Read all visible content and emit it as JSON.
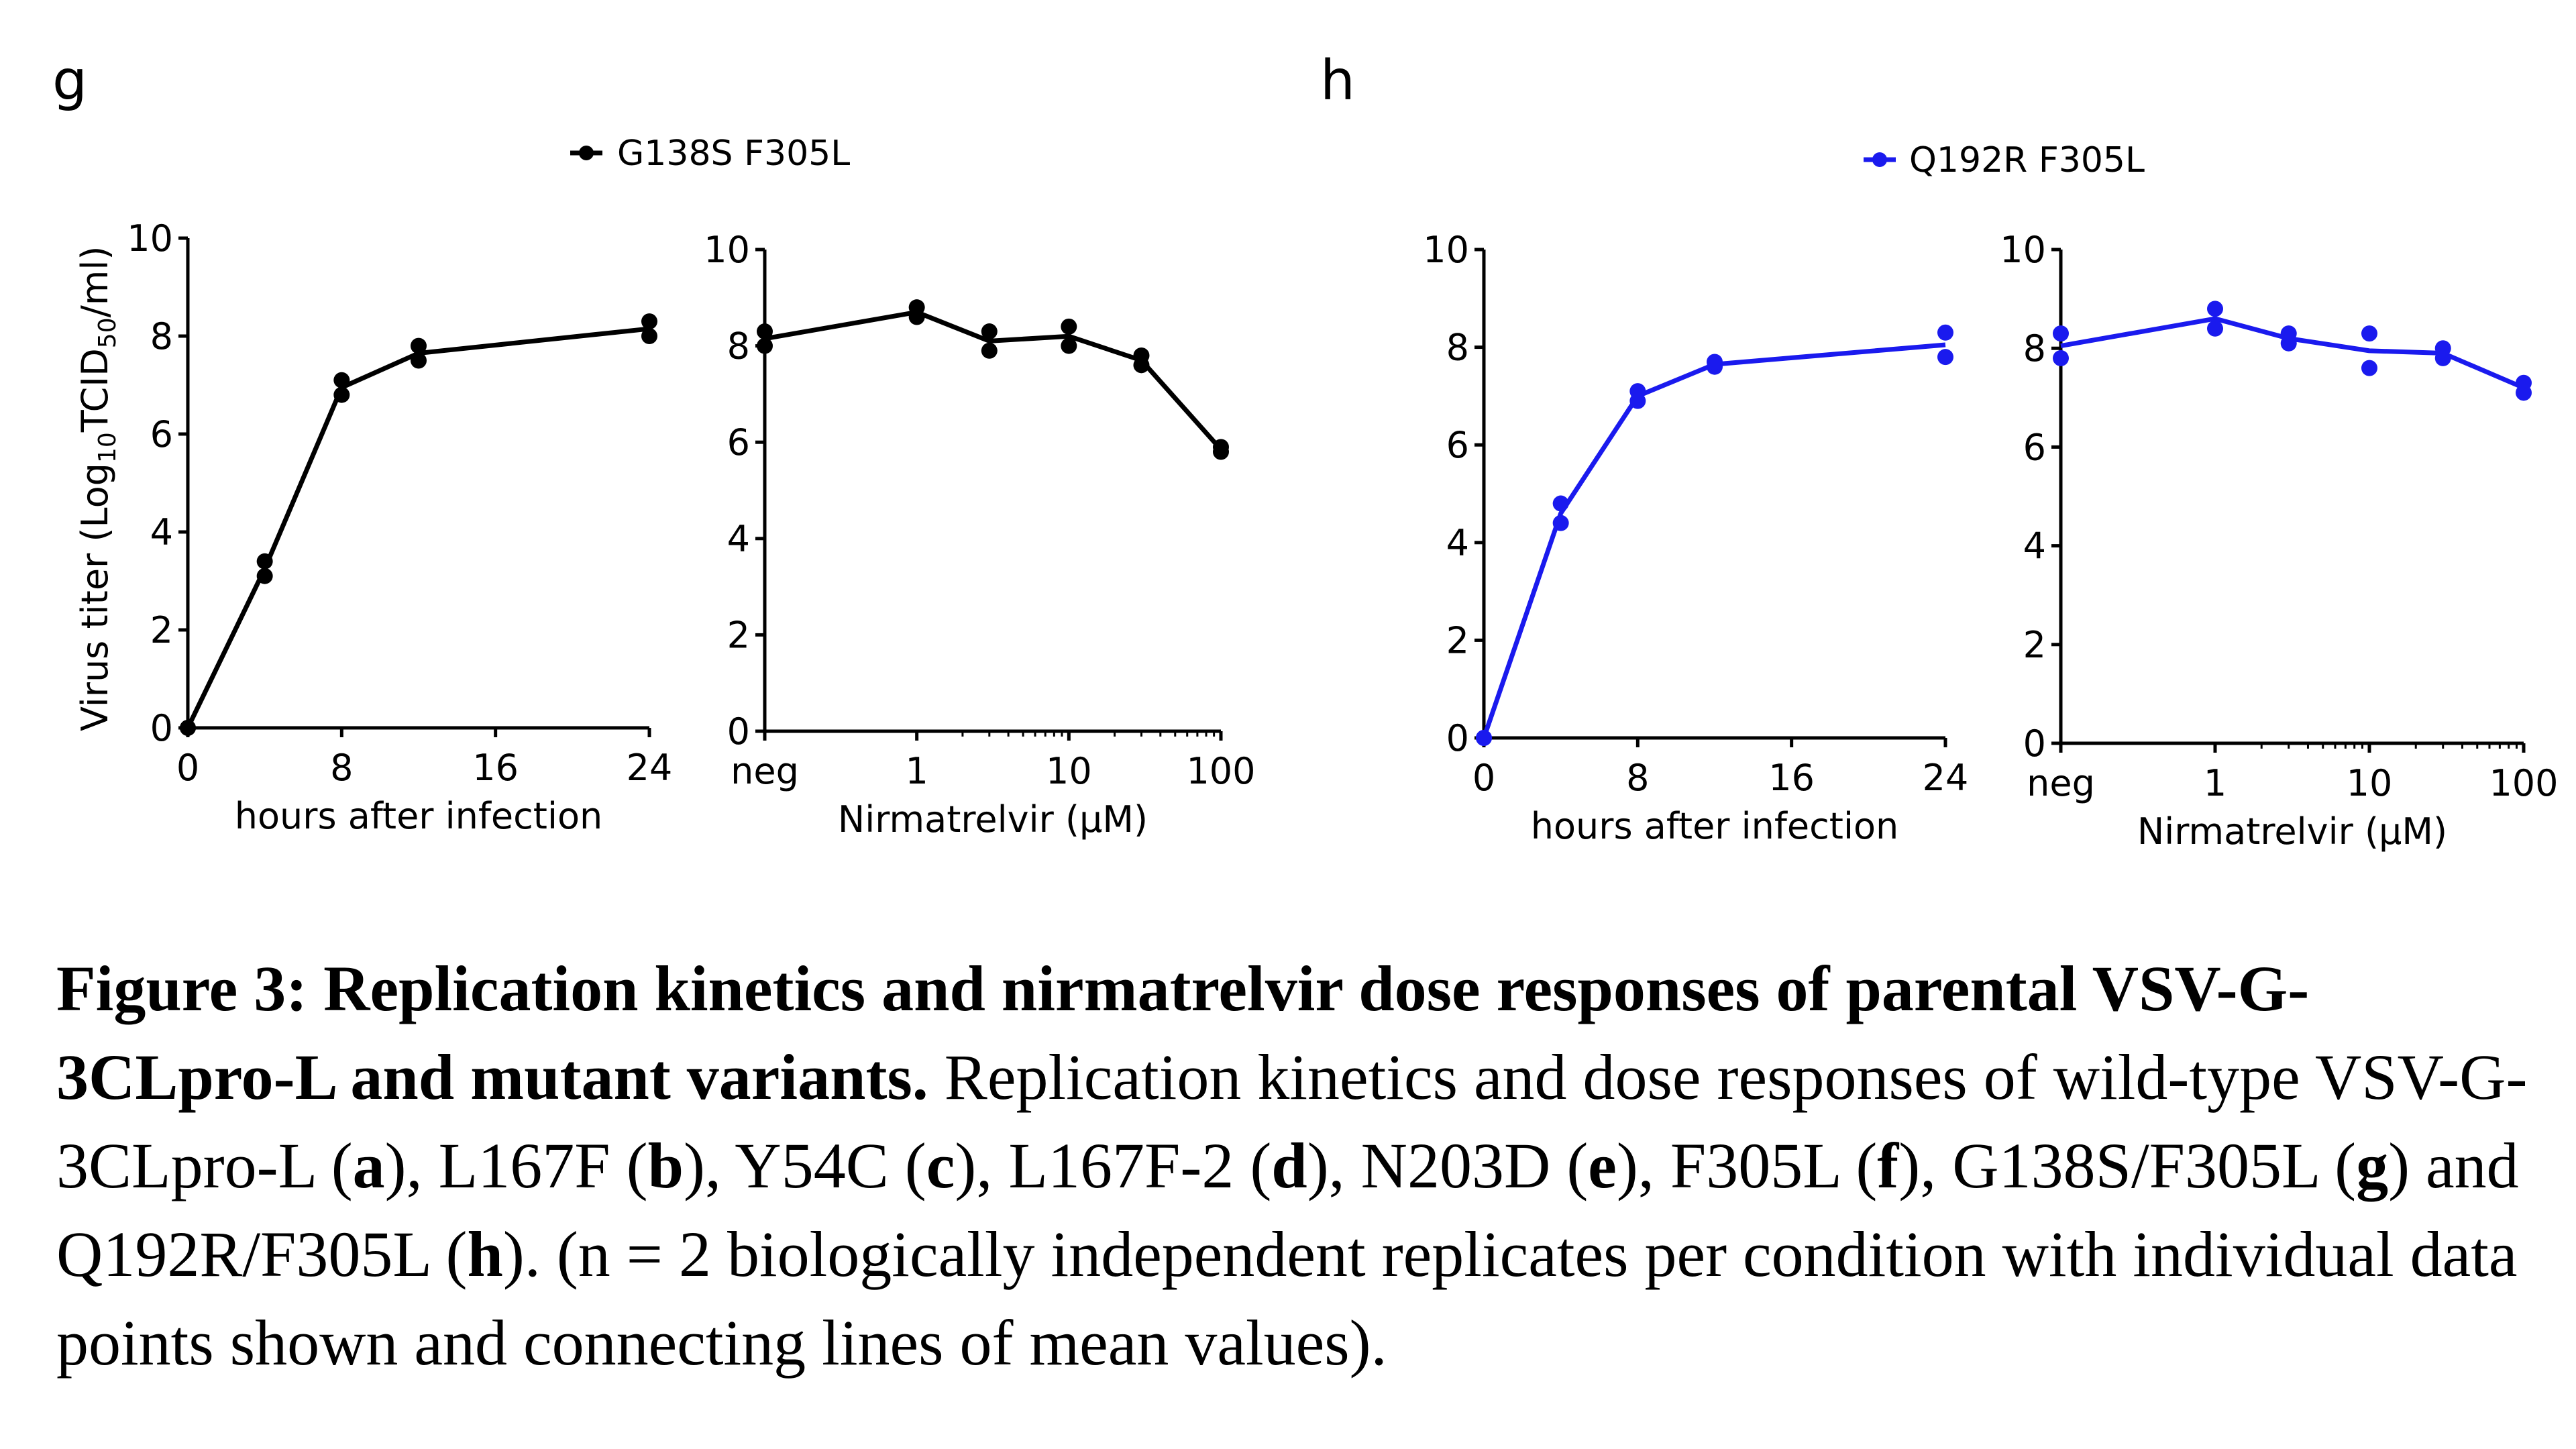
{
  "panels": [
    {
      "letter": "g",
      "legend": "G138S F305L",
      "color": "#000000"
    },
    {
      "letter": "h",
      "legend": "Q192R F305L",
      "color": "#1a1aee"
    }
  ],
  "y_axis_title": "Virus titer (Log10TCID50/ml)",
  "chart_data": [
    {
      "panel": "g",
      "type": "line",
      "series_name": "G138S F305L",
      "color": "#000000",
      "xlabel": "hours after infection",
      "ylabel": "Virus titer (Log10TCID50/ml)",
      "xlim": [
        0,
        24
      ],
      "ylim": [
        0,
        10
      ],
      "xticks": [
        "0",
        "8",
        "16",
        "24"
      ],
      "yticks": [
        "0",
        "2",
        "4",
        "6",
        "8",
        "10"
      ],
      "x": [
        0,
        4,
        8,
        12,
        24
      ],
      "replicates": [
        [
          0,
          0
        ],
        [
          3.1,
          3.4
        ],
        [
          6.8,
          7.1
        ],
        [
          7.5,
          7.8
        ],
        [
          8.0,
          8.3
        ]
      ],
      "mean": [
        0,
        3.25,
        6.95,
        7.65,
        8.15
      ]
    },
    {
      "panel": "g",
      "type": "line",
      "series_name": "G138S F305L",
      "color": "#000000",
      "xlabel": "Nirmatrelvir (μM)",
      "ylabel": "",
      "x_scale": "log",
      "ylim": [
        0,
        10
      ],
      "xticks": [
        "neg",
        "1",
        "10",
        "100"
      ],
      "yticks": [
        "0",
        "2",
        "4",
        "6",
        "8",
        "10"
      ],
      "x": [
        "neg",
        1,
        3,
        10,
        30,
        100
      ],
      "replicates": [
        [
          8.0,
          8.3
        ],
        [
          8.6,
          8.8
        ],
        [
          7.9,
          8.3
        ],
        [
          8.0,
          8.4
        ],
        [
          7.6,
          7.8
        ],
        [
          5.8,
          5.9
        ]
      ],
      "mean": [
        8.15,
        8.7,
        8.1,
        8.2,
        7.7,
        5.85
      ]
    },
    {
      "panel": "h",
      "type": "line",
      "series_name": "Q192R F305L",
      "color": "#1a1aee",
      "xlabel": "hours after infection",
      "ylabel": "",
      "xlim": [
        0,
        24
      ],
      "ylim": [
        0,
        10
      ],
      "xticks": [
        "0",
        "8",
        "16",
        "24"
      ],
      "yticks": [
        "0",
        "2",
        "4",
        "6",
        "8",
        "10"
      ],
      "x": [
        0,
        4,
        8,
        12,
        24
      ],
      "replicates": [
        [
          0,
          0
        ],
        [
          4.4,
          4.8
        ],
        [
          6.9,
          7.1
        ],
        [
          7.6,
          7.7
        ],
        [
          7.8,
          8.3
        ]
      ],
      "mean": [
        0,
        4.6,
        7.0,
        7.65,
        8.05
      ]
    },
    {
      "panel": "h",
      "type": "line",
      "series_name": "Q192R F305L",
      "color": "#1a1aee",
      "xlabel": "Nirmatrelvir (μM)",
      "ylabel": "",
      "x_scale": "log",
      "ylim": [
        0,
        10
      ],
      "xticks": [
        "neg",
        "1",
        "10",
        "100"
      ],
      "yticks": [
        "0",
        "2",
        "4",
        "6",
        "8",
        "10"
      ],
      "x": [
        "neg",
        1,
        3,
        10,
        30,
        100
      ],
      "replicates": [
        [
          7.8,
          8.3
        ],
        [
          8.4,
          8.8
        ],
        [
          8.1,
          8.3
        ],
        [
          7.6,
          8.3
        ],
        [
          7.8,
          8.0
        ],
        [
          7.1,
          7.3
        ]
      ],
      "mean": [
        8.05,
        8.6,
        8.2,
        7.95,
        7.9,
        7.2
      ]
    }
  ],
  "caption": {
    "label": "Figure 3: Replication kinetics and nirmatrelvir dose responses of parental VSV-G-3CLpro-L and mutant variants.",
    "t1": " Replication kinetics and dose responses of wild-type VSV-G-3CLpro-L (",
    "b1": "a",
    "t2": "), L167F (",
    "b2": "b",
    "t3": "), Y54C (",
    "b3": "c",
    "t4": "), L167F-2 (",
    "b4": "d",
    "t5": "), N203D (",
    "b5": "e",
    "t6": "), F305L (",
    "b6": "f",
    "t7": "), G138S/F305L (",
    "b7": "g",
    "t8": ") and Q192R/F305L (",
    "b8": "h",
    "t9": "). (n = 2 biologically independent replicates per condition with individual data points shown and connecting lines of mean values)."
  }
}
